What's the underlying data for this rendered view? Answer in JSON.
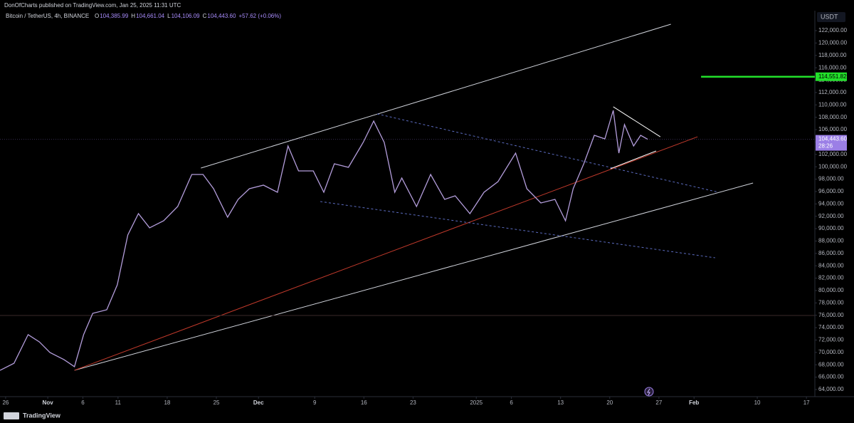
{
  "publisher": "DonOfCharts published on TradingView.com, Jan 25, 2025 11:31 UTC",
  "brand": "TradingView",
  "chart_data": {
    "type": "line",
    "legend": {
      "symbol": "Bitcoin / TetherUS, 4h, BINANCE",
      "ohlc": [
        {
          "key": "O",
          "value": "104,385.99"
        },
        {
          "key": "H",
          "value": "104,661.04"
        },
        {
          "key": "L",
          "value": "104,106.09"
        },
        {
          "key": "C",
          "value": "104,443.60"
        }
      ],
      "change": "+57.62 (+0.06%)"
    },
    "currency": "USDT",
    "x": [
      -0.8,
      1.2,
      3.2,
      4.8,
      6.3,
      8.3,
      9.8,
      11.1,
      12.4,
      14.4,
      15.9,
      17.4,
      18.9,
      20.5,
      22.5,
      24.5,
      26.5,
      28.1,
      29.6,
      31.6,
      33.1,
      34.7,
      36.7,
      38.7,
      40.2,
      41.7,
      43.8,
      45.3,
      46.8,
      48.8,
      50.9,
      52.4,
      53.9,
      55.4,
      56.4,
      58.5,
      60.5,
      62.5,
      64.0,
      66.1,
      68.1,
      70.1,
      72.6,
      74.2,
      76.2,
      78.2,
      79.7,
      80.8,
      82.3,
      83.8,
      85.3,
      86.5,
      87.3,
      88.1,
      89.4,
      90.4,
      91.4
    ],
    "series": [
      {
        "color": "#b39ddb",
        "values": [
          67100,
          68250,
          72870,
          71700,
          69990,
          68840,
          67700,
          72870,
          76320,
          76890,
          80920,
          88970,
          92430,
          90130,
          91280,
          93580,
          98760,
          98760,
          96450,
          91850,
          94730,
          96450,
          97030,
          95880,
          103360,
          99330,
          99330,
          95880,
          100480,
          99910,
          103930,
          107390,
          103930,
          95880,
          98180,
          93580,
          98760,
          94730,
          95300,
          92430,
          95880,
          97610,
          102210,
          96450,
          94150,
          94730,
          91280,
          96450,
          100480,
          105080,
          104510,
          109110,
          102210,
          106810,
          103360,
          105080,
          104443.6
        ]
      }
    ],
    "drawings": [
      {
        "color": "#d1d4dc",
        "dash": false,
        "x": [
          27.8,
          94.7
        ],
        "values": [
          99790,
          123036
        ]
      },
      {
        "color": "#d1d4dc",
        "dash": false,
        "x": [
          9.8,
          106.4
        ],
        "values": [
          67110,
          97370
        ]
      },
      {
        "color": "#c0392b",
        "dash": false,
        "x": [
          9.8,
          98.5
        ],
        "values": [
          67110,
          104850
        ]
      },
      {
        "color": "#5b6bbf",
        "dash": true,
        "x": [
          52.9,
          101.5
        ],
        "values": [
          108540,
          95880
        ]
      },
      {
        "color": "#5b6bbf",
        "dash": true,
        "x": [
          44.8,
          101.0
        ],
        "values": [
          94380,
          85290
        ]
      },
      {
        "color": "#ffffff",
        "dash": false,
        "x": [
          86.5,
          93.2
        ],
        "values": [
          109690,
          104850
        ]
      },
      {
        "color": "#ffffff",
        "dash": false,
        "x": [
          86.1,
          92.6
        ],
        "values": [
          99680,
          102550
        ]
      },
      {
        "color": "#3a2a2a",
        "dash": false,
        "x": [
          -0.8,
          115.2
        ],
        "values": [
          75970,
          75970
        ]
      }
    ],
    "level": {
      "value": 114551.82,
      "label": "114,551.82",
      "color": "#22e02a",
      "x": [
        99,
        115.2
      ]
    },
    "last_price": {
      "value": 104443.6,
      "label": "104,443.60",
      "countdown": "28:26",
      "color": "#9b7fe6"
    },
    "xlim": [
      -0.8,
      115.2
    ],
    "xticks": [
      {
        "value": 0,
        "label": "26"
      },
      {
        "value": 6,
        "label": "Nov"
      },
      {
        "value": 11,
        "label": "6"
      },
      {
        "value": 16,
        "label": "11"
      },
      {
        "value": 23,
        "label": "18"
      },
      {
        "value": 30,
        "label": "25"
      },
      {
        "value": 36,
        "label": "Dec"
      },
      {
        "value": 44,
        "label": "9"
      },
      {
        "value": 51,
        "label": "16"
      },
      {
        "value": 58,
        "label": "23"
      },
      {
        "value": 67,
        "label": "2025"
      },
      {
        "value": 72,
        "label": "6"
      },
      {
        "value": 79,
        "label": "13"
      },
      {
        "value": 86,
        "label": "20"
      },
      {
        "value": 93,
        "label": "27"
      },
      {
        "value": 98,
        "label": "Feb"
      },
      {
        "value": 107,
        "label": "10"
      },
      {
        "value": 114,
        "label": "17"
      }
    ],
    "ylim": [
      62850,
      126950
    ],
    "yticks": [
      {
        "value": 64000,
        "label": "64,000.00"
      },
      {
        "value": 66000,
        "label": "66,000.00"
      },
      {
        "value": 68000,
        "label": "68,000.00"
      },
      {
        "value": 70000,
        "label": "70,000.00"
      },
      {
        "value": 72000,
        "label": "72,000.00"
      },
      {
        "value": 74000,
        "label": "74,000.00"
      },
      {
        "value": 76000,
        "label": "76,000.00"
      },
      {
        "value": 78000,
        "label": "78,000.00"
      },
      {
        "value": 80000,
        "label": "80,000.00"
      },
      {
        "value": 82000,
        "label": "82,000.00"
      },
      {
        "value": 84000,
        "label": "84,000.00"
      },
      {
        "value": 86000,
        "label": "86,000.00"
      },
      {
        "value": 88000,
        "label": "88,000.00"
      },
      {
        "value": 90000,
        "label": "90,000.00"
      },
      {
        "value": 92000,
        "label": "92,000.00"
      },
      {
        "value": 94000,
        "label": "94,000.00"
      },
      {
        "value": 96000,
        "label": "96,000.00"
      },
      {
        "value": 98000,
        "label": "98,000.00"
      },
      {
        "value": 100000,
        "label": "100,000.00"
      },
      {
        "value": 102000,
        "label": "102,000.00"
      },
      {
        "value": 104000,
        "label": "104,000.00"
      },
      {
        "value": 106000,
        "label": "106,000.00"
      },
      {
        "value": 108000,
        "label": "108,000.00"
      },
      {
        "value": 110000,
        "label": "110,000.00"
      },
      {
        "value": 112000,
        "label": "112,000.00"
      },
      {
        "value": 114000,
        "label": "114,000.00"
      },
      {
        "value": 116000,
        "label": "116,000.00"
      },
      {
        "value": 118000,
        "label": "118,000.00"
      },
      {
        "value": 120000,
        "label": "120,000.00"
      },
      {
        "value": 122000,
        "label": "122,000.00"
      }
    ]
  }
}
